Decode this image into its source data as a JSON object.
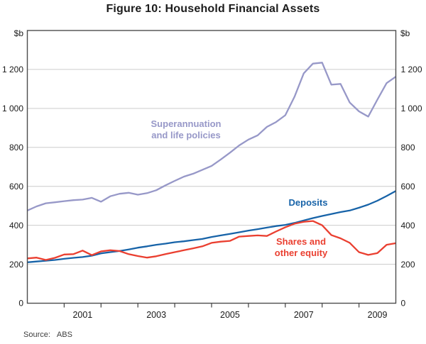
{
  "title": "Figure 10: Household Financial Assets",
  "y_axis": {
    "unit_left": "$b",
    "unit_right": "$b",
    "min": 0,
    "max": 1400,
    "tick_step": 200,
    "ticks": [
      {
        "value": 1200,
        "label": "1 200"
      },
      {
        "value": 1000,
        "label": "1 000"
      },
      {
        "value": 800,
        "label": "800"
      },
      {
        "value": 600,
        "label": "600"
      },
      {
        "value": 400,
        "label": "400"
      },
      {
        "value": 200,
        "label": "200"
      },
      {
        "value": 0,
        "label": "0"
      }
    ]
  },
  "x_axis": {
    "start": 2000,
    "end": 2010,
    "tick_years": [
      2001,
      2002,
      2003,
      2004,
      2005,
      2006,
      2007,
      2008,
      2009
    ],
    "labels": [
      {
        "year": 2001,
        "text": "2001"
      },
      {
        "year": 2003,
        "text": "2003"
      },
      {
        "year": 2005,
        "text": "2005"
      },
      {
        "year": 2007,
        "text": "2007"
      },
      {
        "year": 2009,
        "text": "2009"
      }
    ]
  },
  "source": {
    "label": "Source:",
    "value": "ABS"
  },
  "colors": {
    "grid": "#cccccc",
    "frame": "#4d4d4d",
    "text": "#1a1a1a"
  },
  "chart_data": {
    "type": "line",
    "title": "Figure 10: Household Financial Assets",
    "ylabel": "$b",
    "ylim": [
      0,
      1400
    ],
    "grid": "horizontal",
    "x_note": "quarter-end values, Dec 1999 to Dec 2009 (x = calendar time in years)",
    "x": [
      2000,
      2000.25,
      2000.5,
      2000.75,
      2001,
      2001.25,
      2001.5,
      2001.75,
      2002,
      2002.25,
      2002.5,
      2002.75,
      2003,
      2003.25,
      2003.5,
      2003.75,
      2004,
      2004.25,
      2004.5,
      2004.75,
      2005,
      2005.25,
      2005.5,
      2005.75,
      2006,
      2006.25,
      2006.5,
      2006.75,
      2007,
      2007.25,
      2007.5,
      2007.75,
      2008,
      2008.25,
      2008.5,
      2008.75,
      2009,
      2009.25,
      2009.5,
      2009.75,
      2010
    ],
    "series": [
      {
        "name": "Superannuation and life policies",
        "label_lines": [
          "Superannuation",
          "and life policies"
        ],
        "color": "#9798c8",
        "values": [
          476,
          497,
          513,
          518,
          524,
          529,
          532,
          541,
          521,
          549,
          562,
          567,
          557,
          565,
          580,
          605,
          628,
          650,
          665,
          685,
          705,
          738,
          773,
          810,
          840,
          862,
          905,
          930,
          965,
          1060,
          1180,
          1230,
          1235,
          1122,
          1126,
          1030,
          985,
          958,
          1045,
          1130,
          1163
        ]
      },
      {
        "name": "Deposits",
        "label_lines": [
          "Deposits"
        ],
        "color": "#1763a8",
        "values": [
          210,
          214,
          218,
          222,
          228,
          233,
          237,
          244,
          256,
          262,
          268,
          276,
          285,
          292,
          300,
          306,
          313,
          318,
          324,
          330,
          340,
          348,
          356,
          364,
          373,
          380,
          388,
          396,
          402,
          412,
          425,
          437,
          448,
          458,
          468,
          476,
          490,
          506,
          526,
          550,
          576
        ]
      },
      {
        "name": "Shares and other equity",
        "label_lines": [
          "Shares and",
          "other equity"
        ],
        "color": "#ea3f30",
        "values": [
          230,
          234,
          222,
          233,
          250,
          252,
          270,
          247,
          266,
          272,
          268,
          252,
          242,
          234,
          241,
          252,
          262,
          272,
          282,
          292,
          310,
          316,
          320,
          342,
          345,
          348,
          345,
          368,
          390,
          408,
          418,
          422,
          400,
          350,
          333,
          310,
          262,
          248,
          257,
          300,
          308
        ]
      }
    ],
    "legend_position": "inline-labels"
  }
}
